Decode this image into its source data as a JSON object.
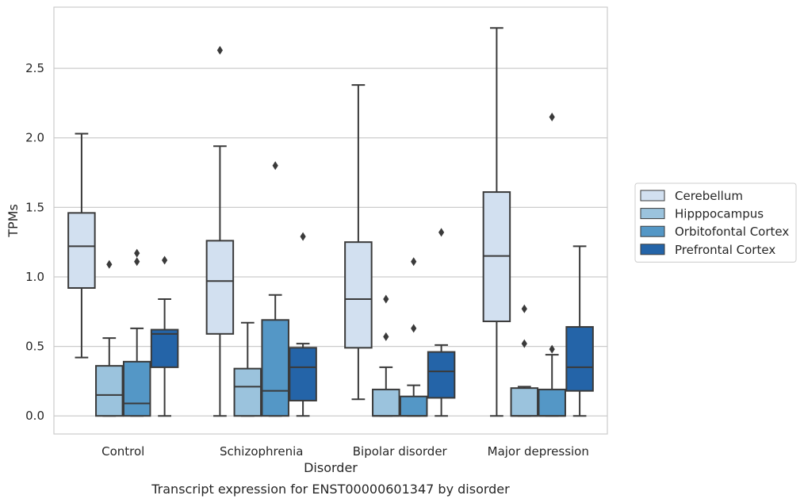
{
  "chart_data": {
    "type": "box",
    "title": "",
    "caption": "Transcript expression for ENST00000601347 by disorder",
    "xlabel": "Disorder",
    "ylabel": "TPMs",
    "ylim": [
      -0.13,
      2.94
    ],
    "yticks": [
      0.0,
      0.5,
      1.0,
      1.5,
      2.0,
      2.5
    ],
    "ytick_labels": [
      "0.0",
      "0.5",
      "1.0",
      "1.5",
      "2.0",
      "2.5"
    ],
    "grid": "horizontal",
    "legend_position": "right",
    "categories": [
      "Control",
      "Schizophrenia",
      "Bipolar disorder",
      "Major depression"
    ],
    "series": [
      {
        "name": "Cerebellum",
        "color": "#d2e0f0",
        "boxes": [
          {
            "whislo": 0.42,
            "q1": 0.92,
            "med": 1.22,
            "q3": 1.46,
            "whishi": 2.03,
            "fliers": []
          },
          {
            "whislo": 0.0,
            "q1": 0.59,
            "med": 0.97,
            "q3": 1.26,
            "whishi": 1.94,
            "fliers": [
              2.63
            ]
          },
          {
            "whislo": 0.12,
            "q1": 0.49,
            "med": 0.84,
            "q3": 1.25,
            "whishi": 2.38,
            "fliers": []
          },
          {
            "whislo": 0.0,
            "q1": 0.68,
            "med": 1.15,
            "q3": 1.61,
            "whishi": 2.79,
            "fliers": []
          }
        ]
      },
      {
        "name": "Hipppocampus",
        "color": "#9bc3dd",
        "boxes": [
          {
            "whislo": 0.0,
            "q1": 0.0,
            "med": 0.15,
            "q3": 0.36,
            "whishi": 0.56,
            "fliers": [
              1.09
            ]
          },
          {
            "whislo": 0.0,
            "q1": 0.0,
            "med": 0.21,
            "q3": 0.34,
            "whishi": 0.67,
            "fliers": []
          },
          {
            "whislo": 0.0,
            "q1": 0.0,
            "med": 0.0,
            "q3": 0.19,
            "whishi": 0.35,
            "fliers": [
              0.57,
              0.84
            ]
          },
          {
            "whislo": 0.0,
            "q1": 0.0,
            "med": 0.0,
            "q3": 0.2,
            "whishi": 0.21,
            "fliers": [
              0.52,
              0.77
            ]
          }
        ]
      },
      {
        "name": "Orbitofontal Cortex",
        "color": "#5497c6",
        "boxes": [
          {
            "whislo": 0.0,
            "q1": 0.0,
            "med": 0.09,
            "q3": 0.39,
            "whishi": 0.63,
            "fliers": [
              1.11,
              1.17
            ]
          },
          {
            "whislo": 0.0,
            "q1": 0.0,
            "med": 0.18,
            "q3": 0.69,
            "whishi": 0.87,
            "fliers": [
              1.8
            ]
          },
          {
            "whislo": 0.0,
            "q1": 0.0,
            "med": 0.0,
            "q3": 0.14,
            "whishi": 0.22,
            "fliers": [
              0.63,
              1.11
            ]
          },
          {
            "whislo": 0.0,
            "q1": 0.0,
            "med": 0.0,
            "q3": 0.19,
            "whishi": 0.44,
            "fliers": [
              0.48,
              2.15
            ]
          }
        ]
      },
      {
        "name": "Prefrontal Cortex",
        "color": "#2464a8",
        "boxes": [
          {
            "whislo": 0.0,
            "q1": 0.35,
            "med": 0.59,
            "q3": 0.62,
            "whishi": 0.84,
            "fliers": [
              1.12
            ]
          },
          {
            "whislo": 0.0,
            "q1": 0.11,
            "med": 0.35,
            "q3": 0.49,
            "whishi": 0.52,
            "fliers": [
              1.29
            ]
          },
          {
            "whislo": 0.0,
            "q1": 0.13,
            "med": 0.32,
            "q3": 0.46,
            "whishi": 0.51,
            "fliers": [
              1.32
            ]
          },
          {
            "whislo": 0.0,
            "q1": 0.18,
            "med": 0.35,
            "q3": 0.64,
            "whishi": 1.22,
            "fliers": []
          }
        ]
      }
    ]
  }
}
